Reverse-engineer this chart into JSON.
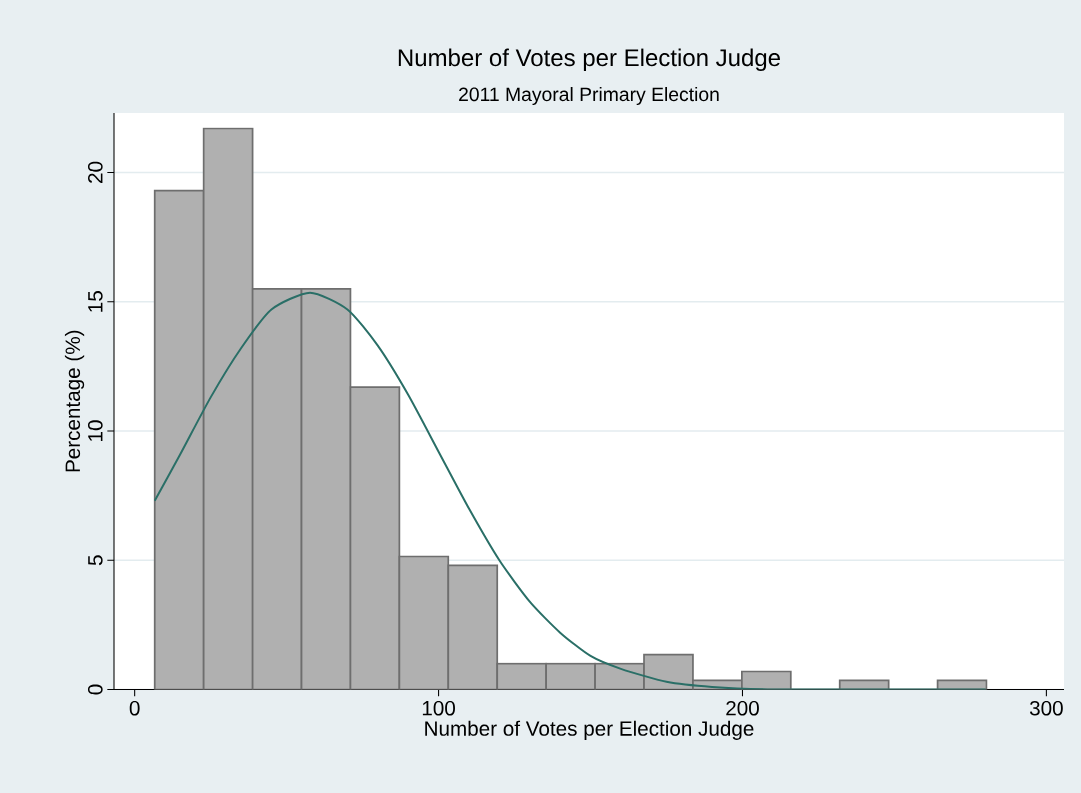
{
  "chart_data": {
    "type": "histogram",
    "title": "Number of Votes per Election Judge",
    "subtitle": "2011 Mayoral Primary Election",
    "xlabel": "Number of Votes per Election Judge",
    "ylabel": "Percentage (%)",
    "bins": [
      6.6,
      22.7,
      38.8,
      54.9,
      71.0,
      87.1,
      103.2,
      119.3,
      135.4,
      151.5,
      167.6,
      183.7,
      199.8,
      215.9,
      232.0,
      248.1,
      264.2,
      280.3
    ],
    "values": [
      19.3,
      21.7,
      15.5,
      15.5,
      11.7,
      5.15,
      4.8,
      1.0,
      1.0,
      1.0,
      1.35,
      0.35,
      0.7,
      0,
      0.35,
      0,
      0.35
    ],
    "color": "#b0b0b0",
    "series": [
      {
        "type": "line",
        "color": "#2a6f67",
        "x": [
          6.6,
          15,
          25,
          35,
          45,
          57.7,
          70,
          80,
          90,
          100,
          110,
          120,
          130,
          140,
          150,
          160,
          175,
          190,
          210,
          240,
          280
        ],
        "values": [
          7.3,
          9.1,
          11.3,
          13.2,
          14.7,
          15.35,
          14.7,
          13.3,
          11.4,
          9.2,
          7.0,
          5.0,
          3.4,
          2.2,
          1.3,
          0.8,
          0.3,
          0.1,
          0,
          0,
          0
        ]
      }
    ],
    "xlim": [
      -6.8,
      305.8
    ],
    "ylim": [
      0,
      22.3
    ],
    "xticks": [
      0,
      100,
      200,
      300
    ],
    "yticks": [
      0,
      5,
      10,
      15,
      20
    ],
    "grid": "y"
  }
}
